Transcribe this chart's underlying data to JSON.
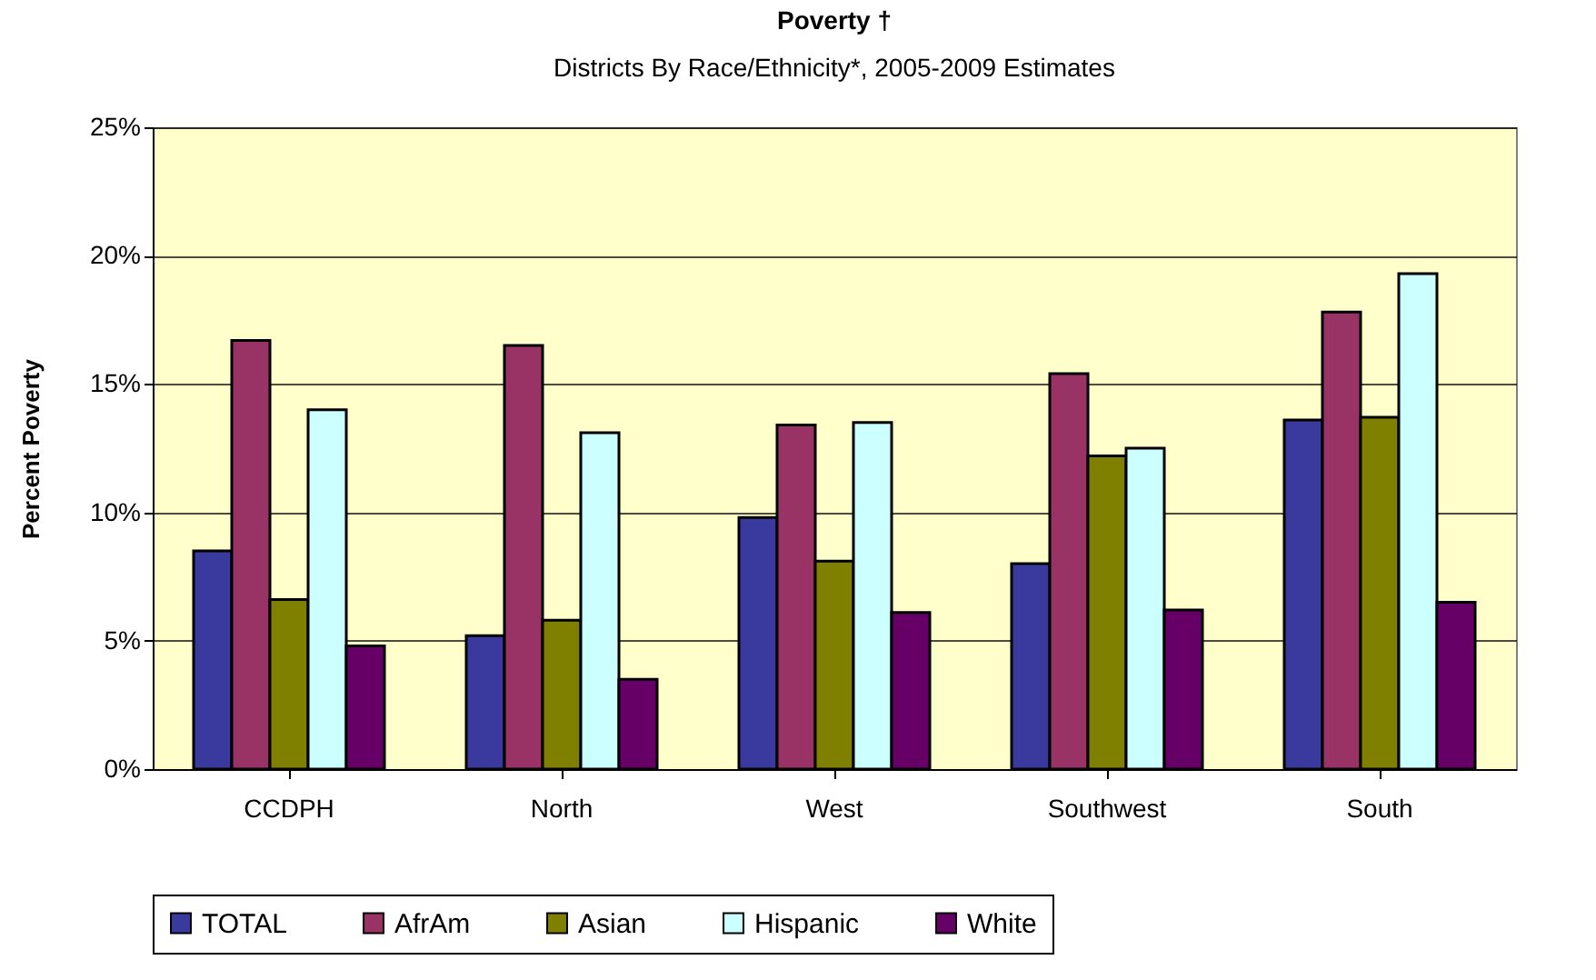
{
  "chart_data": {
    "type": "bar",
    "title": "Poverty †",
    "subtitle": "Districts By Race/Ethnicity*, 2005-2009 Estimates",
    "ylabel": "Percent Poverty",
    "categories": [
      "CCDPH",
      "North",
      "West",
      "Southwest",
      "South"
    ],
    "series": [
      {
        "name": "TOTAL",
        "color": "#3a3a9e",
        "values": [
          8.5,
          5.2,
          9.8,
          8.0,
          13.6
        ]
      },
      {
        "name": "AfrAm",
        "color": "#993366",
        "values": [
          16.7,
          16.5,
          13.4,
          15.4,
          17.8
        ]
      },
      {
        "name": "Asian",
        "color": "#808000",
        "values": [
          6.6,
          5.8,
          8.1,
          12.2,
          13.7
        ]
      },
      {
        "name": "Hispanic",
        "color": "#ccffff",
        "values": [
          14.0,
          13.1,
          13.5,
          12.5,
          19.3
        ]
      },
      {
        "name": "White",
        "color": "#660066",
        "values": [
          4.8,
          3.5,
          6.1,
          6.2,
          6.5
        ]
      }
    ],
    "ylim": [
      0,
      25
    ],
    "yticks": [
      {
        "value": 0,
        "label": "0%"
      },
      {
        "value": 5,
        "label": "5%"
      },
      {
        "value": 10,
        "label": "10%"
      },
      {
        "value": 15,
        "label": "15%"
      },
      {
        "value": 20,
        "label": "20%"
      },
      {
        "value": 25,
        "label": "25%"
      }
    ],
    "grid": "y",
    "legend": "bottom"
  }
}
